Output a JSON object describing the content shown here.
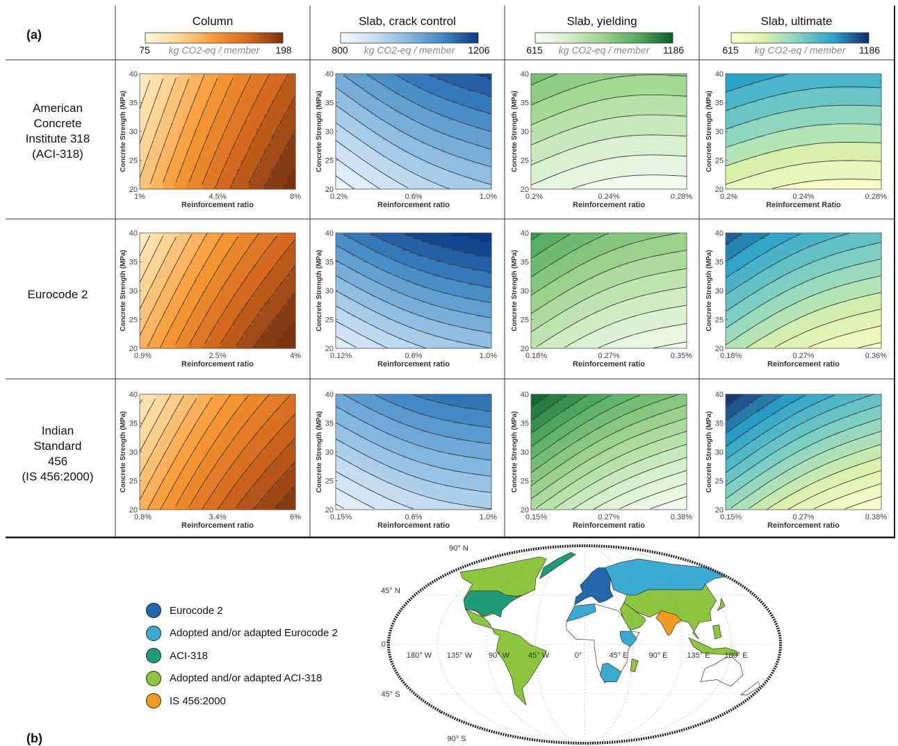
{
  "panel_a_label": "(a)",
  "panel_b_label": "(b)",
  "columns": [
    {
      "title": "Column",
      "cb_min": "75",
      "cb_max": "198",
      "cb_unit": "kg CO2-eq / member",
      "colors": [
        "#fff6dc",
        "#fdd595",
        "#f89a35",
        "#d6691e",
        "#7a3310"
      ]
    },
    {
      "title": "Slab, crack control",
      "cb_min": "800",
      "cb_max": "1206",
      "cb_unit": "kg CO2-eq / member",
      "colors": [
        "#f4f9ff",
        "#c9def2",
        "#83b7de",
        "#3f86c4",
        "#0a3a85"
      ]
    },
    {
      "title": "Slab, yielding",
      "cb_min": "615",
      "cb_max": "1186",
      "cb_unit": "kg CO2-eq / member",
      "colors": [
        "#f7fcf4",
        "#d4eec9",
        "#9bd28b",
        "#51ab60",
        "#0b5c2a"
      ]
    },
    {
      "title": "Slab, ultimate",
      "cb_min": "615",
      "cb_max": "1186",
      "cb_unit": "kg CO2-eq / member",
      "colors": [
        "#fdfed0",
        "#d9f0ab",
        "#7dcfc4",
        "#2aa2c9",
        "#17276a"
      ]
    }
  ],
  "rows": [
    {
      "label": [
        "American",
        "Concrete",
        "Institute 318",
        "(ACI-318)"
      ]
    },
    {
      "label": [
        "Eurocode 2"
      ]
    },
    {
      "label": [
        "Indian",
        "Standard",
        "456",
        "(IS 456:2000)"
      ]
    }
  ],
  "chart_data": [
    {
      "type": "contour",
      "standard": "ACI-318",
      "member": "Column",
      "xlabel": "Reinforcement ratio",
      "ylabel": "Concrete Strength (MPa)",
      "x_ticks": [
        "1%",
        "4.5%",
        "8%"
      ],
      "y_ticks": [
        "20",
        "25",
        "30",
        "35",
        "40"
      ],
      "x_range": [
        1,
        8
      ],
      "y_range": [
        20,
        40
      ],
      "z_range": [
        75,
        198
      ],
      "levels": 14,
      "gx": 1.0,
      "gy": -0.32,
      "base": 0.07,
      "scale": 0.98
    },
    {
      "type": "contour",
      "standard": "ACI-318",
      "member": "Slab, crack control",
      "xlabel": "Reinforcement ratio",
      "ylabel": "Concrete Strength (MPa)",
      "x_ticks": [
        "0.2%",
        "0.6%",
        "1.0%"
      ],
      "y_ticks": [
        "20",
        "25",
        "30",
        "35",
        "40"
      ],
      "x_range": [
        0.2,
        1.0
      ],
      "y_range": [
        20,
        40
      ],
      "z_range": [
        800,
        1206
      ],
      "levels": 12,
      "gx": 0.38,
      "gy": 0.55,
      "base": 0.02,
      "scale": 0.92
    },
    {
      "type": "contour",
      "standard": "ACI-318",
      "member": "Slab, yielding",
      "xlabel": "Reinforcement ratio",
      "ylabel": "Concrete Strength (MPa)",
      "x_ticks": [
        "0.2%",
        "0.24%",
        "0.28%"
      ],
      "y_ticks": [
        "20",
        "25",
        "30",
        "35",
        "40"
      ],
      "x_range": [
        0.2,
        0.28
      ],
      "y_range": [
        20,
        40
      ],
      "z_range": [
        615,
        1186
      ],
      "levels": 12,
      "gx": -0.25,
      "gy": 1.0,
      "base": 0.03,
      "scale": 0.6
    },
    {
      "type": "contour",
      "standard": "ACI-318",
      "member": "Slab, ultimate",
      "xlabel": "Reinforcement Ratio",
      "ylabel": "Concrete Strength (MPa)",
      "x_ticks": [
        "0.2%",
        "0.24%",
        "0.28%"
      ],
      "y_ticks": [
        "20",
        "25",
        "30",
        "35",
        "40"
      ],
      "x_range": [
        0.2,
        0.28
      ],
      "y_range": [
        20,
        40
      ],
      "z_range": [
        615,
        1186
      ],
      "levels": 10,
      "gx": -0.2,
      "gy": 1.0,
      "base": 0.05,
      "scale": 0.75
    },
    {
      "type": "contour",
      "standard": "Eurocode 2",
      "member": "Column",
      "xlabel": "Reinforcement ratio",
      "ylabel": "Concrete Strength (MPa)",
      "x_ticks": [
        "0.9%",
        "2.5%",
        "4%"
      ],
      "y_ticks": [
        "20",
        "25",
        "30",
        "35",
        "40"
      ],
      "x_range": [
        0.9,
        4
      ],
      "y_range": [
        20,
        40
      ],
      "z_range": [
        75,
        198
      ],
      "levels": 14,
      "gx": 1.0,
      "gy": -0.45,
      "base": 0.08,
      "scale": 1.0
    },
    {
      "type": "contour",
      "standard": "Eurocode 2",
      "member": "Slab, crack control",
      "xlabel": "Reinforcement ratio",
      "ylabel": "Concrete Strength (MPa)",
      "x_ticks": [
        "0.12%",
        "0.6%",
        "1.0%"
      ],
      "y_ticks": [
        "20",
        "25",
        "30",
        "35",
        "40"
      ],
      "x_range": [
        0.12,
        1.0
      ],
      "y_range": [
        20,
        40
      ],
      "z_range": [
        800,
        1206
      ],
      "levels": 12,
      "gx": 0.35,
      "gy": 0.7,
      "base": 0.1,
      "scale": 0.95
    },
    {
      "type": "contour",
      "standard": "Eurocode 2",
      "member": "Slab, yielding",
      "xlabel": "Reinforcement ratio",
      "ylabel": "Concrete Strength (MPa)",
      "x_ticks": [
        "0.18%",
        "0.27%",
        "0.35%"
      ],
      "y_ticks": [
        "20",
        "25",
        "30",
        "35",
        "40"
      ],
      "x_range": [
        0.18,
        0.35
      ],
      "y_range": [
        20,
        40
      ],
      "z_range": [
        615,
        1186
      ],
      "levels": 13,
      "gx": -0.55,
      "gy": 1.0,
      "base": 0.05,
      "scale": 0.75
    },
    {
      "type": "contour",
      "standard": "Eurocode 2",
      "member": "Slab, ultimate",
      "xlabel": "Reinforcement ratio",
      "ylabel": "Concrete Strength (MPa)",
      "x_ticks": [
        "0.18%",
        "0.27%",
        "0.36%"
      ],
      "y_ticks": [
        "20",
        "25",
        "30",
        "35",
        "40"
      ],
      "x_range": [
        0.18,
        0.36
      ],
      "y_range": [
        20,
        40
      ],
      "z_range": [
        615,
        1186
      ],
      "levels": 13,
      "gx": -0.6,
      "gy": 1.0,
      "base": 0.05,
      "scale": 0.85
    },
    {
      "type": "contour",
      "standard": "IS 456:2000",
      "member": "Column",
      "xlabel": "Reinforcement ratio",
      "ylabel": "Concrete Strength (MPa)",
      "x_ticks": [
        "0.8%",
        "3.4%",
        "6%"
      ],
      "y_ticks": [
        "20",
        "25",
        "30",
        "35",
        "40"
      ],
      "x_range": [
        0.8,
        6
      ],
      "y_range": [
        20,
        40
      ],
      "z_range": [
        75,
        198
      ],
      "levels": 16,
      "gx": 1.0,
      "gy": -0.5,
      "base": 0.1,
      "scale": 0.9
    },
    {
      "type": "contour",
      "standard": "IS 456:2000",
      "member": "Slab, crack control",
      "xlabel": "Reinforcement ratio",
      "ylabel": "Concrete Strength (MPa)",
      "x_ticks": [
        "0.15%",
        "0.6%",
        "1.0%"
      ],
      "y_ticks": [
        "20",
        "25",
        "30",
        "35",
        "40"
      ],
      "x_range": [
        0.15,
        1.0
      ],
      "y_range": [
        20,
        40
      ],
      "z_range": [
        800,
        1206
      ],
      "levels": 13,
      "gx": 0.35,
      "gy": 0.75,
      "base": 0.05,
      "scale": 0.8
    },
    {
      "type": "contour",
      "standard": "IS 456:2000",
      "member": "Slab, yielding",
      "xlabel": "Reinforcement ratio",
      "ylabel": "Concrete Strength (MPa)",
      "x_ticks": [
        "0.15%",
        "0.27%",
        "0.38%"
      ],
      "y_ticks": [
        "20",
        "25",
        "30",
        "35",
        "40"
      ],
      "x_range": [
        0.15,
        0.38
      ],
      "y_range": [
        20,
        40
      ],
      "z_range": [
        615,
        1186
      ],
      "levels": 15,
      "gx": -0.7,
      "gy": 1.0,
      "base": 0.0,
      "scale": 1.0
    },
    {
      "type": "contour",
      "standard": "IS 456:2000",
      "member": "Slab, ultimate",
      "xlabel": "Reinforcement ratio",
      "ylabel": "Concrete Strength (MPa)",
      "x_ticks": [
        "0.15%",
        "0.27%",
        "0.38%"
      ],
      "y_ticks": [
        "20",
        "25",
        "30",
        "35",
        "40"
      ],
      "x_range": [
        0.15,
        0.38
      ],
      "y_range": [
        20,
        40
      ],
      "z_range": [
        615,
        1186
      ],
      "levels": 15,
      "gx": -0.7,
      "gy": 1.0,
      "base": 0.0,
      "scale": 1.0
    }
  ],
  "map": {
    "lat_labels": [
      "90° N",
      "45° N",
      "0°",
      "45° S",
      "90° S"
    ],
    "lon_labels": [
      "180° W",
      "135° W",
      "90° W",
      "45° W",
      "0°",
      "45° E",
      "90° E",
      "135° E",
      "180° E"
    ],
    "legend": [
      {
        "label": "Eurocode 2",
        "color": "#2166a8"
      },
      {
        "label": "Adopted and/or adapted Eurocode 2",
        "color": "#3aaad2"
      },
      {
        "label": "ACI-318",
        "color": "#1f9a77"
      },
      {
        "label": "Adopted and/or adapted ACI-318",
        "color": "#8cc63f"
      },
      {
        "label": "IS 456:2000",
        "color": "#f29b24"
      }
    ]
  }
}
